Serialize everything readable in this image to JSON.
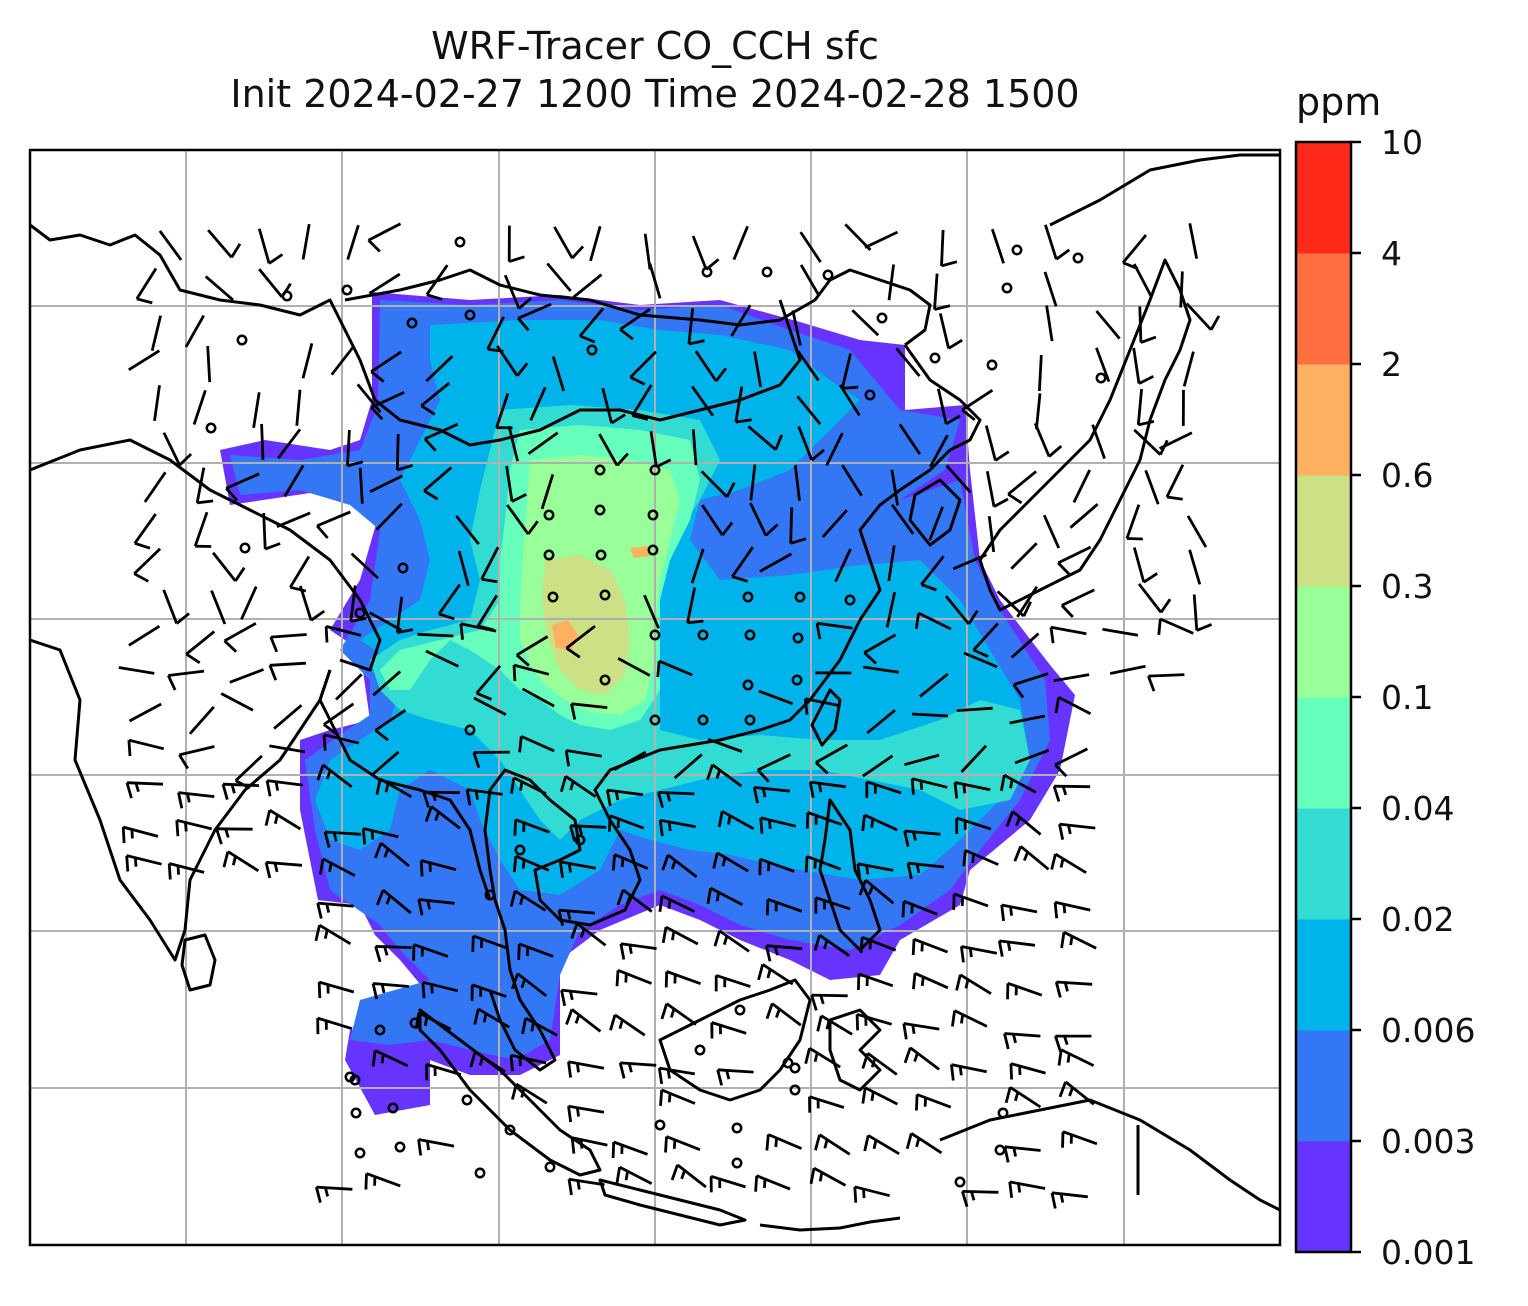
{
  "title": {
    "line1": "WRF-Tracer CO_CCH sfc",
    "line2": "Init 2024-02-27 1200 Time 2024-02-28 1500"
  },
  "colorbar": {
    "unit": "ppm",
    "levels": [
      "0.001",
      "0.003",
      "0.006",
      "0.02",
      "0.04",
      "0.1",
      "0.3",
      "0.6",
      "2",
      "4",
      "10"
    ],
    "colors": [
      "#6633ff",
      "#3377f5",
      "#00b3ea",
      "#33dcd3",
      "#66ffbb",
      "#99ff99",
      "#cce085",
      "#ffb060",
      "#ff7040",
      "#ff2a1a"
    ]
  },
  "map": {
    "projection": "lat-lon grid",
    "gridlines": true,
    "overlay": "wind barbs",
    "colors": {
      "grid": "#b0b0b0",
      "coast": "#000000",
      "barb": "#000000"
    }
  }
}
